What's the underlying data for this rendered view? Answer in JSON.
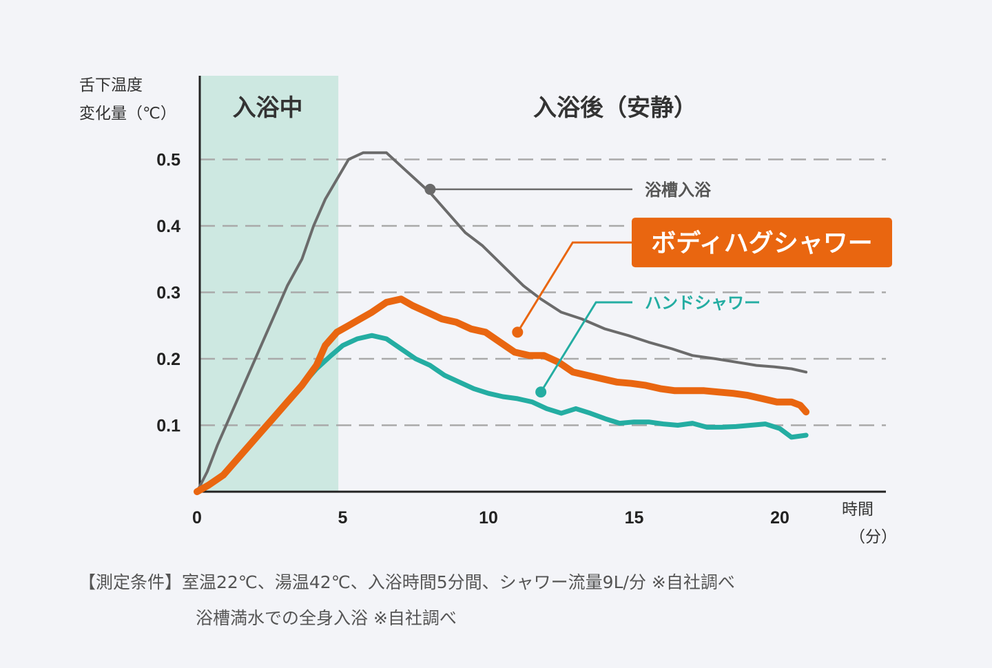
{
  "chart_data": {
    "type": "line",
    "ylabel": [
      "舌下温度",
      "変化量（℃）"
    ],
    "xlabel": [
      "時間",
      "（分）"
    ],
    "xlim": [
      0,
      23.3
    ],
    "ylim": [
      0,
      0.62
    ],
    "xticks": [
      0,
      5,
      10,
      15,
      20
    ],
    "yticks": [
      0.1,
      0.2,
      0.3,
      0.4,
      0.5
    ],
    "grid": "horizontal dashed",
    "regions": [
      {
        "label": "入浴中",
        "x0": 0,
        "x1": 4.85,
        "color": "#cde8e1"
      },
      {
        "label": "入浴後（安静）",
        "x0": 4.85,
        "x1": 23.3
      }
    ],
    "series": [
      {
        "name": "浴槽入浴",
        "color": "#6b6b6b",
        "x": [
          0,
          0.35,
          0.7,
          1.1,
          1.6,
          2.1,
          2.6,
          3.1,
          3.6,
          4.0,
          4.4,
          4.8,
          5.2,
          5.7,
          6.1,
          6.5,
          7.0,
          7.5,
          8.0,
          8.6,
          9.2,
          9.8,
          10.5,
          11.2,
          11.8,
          12.5,
          13.2,
          14.0,
          14.8,
          15.5,
          16.3,
          17.0,
          17.8,
          18.5,
          19.2,
          19.8,
          20.4,
          20.9
        ],
        "y": [
          0.0,
          0.03,
          0.07,
          0.11,
          0.16,
          0.21,
          0.26,
          0.31,
          0.35,
          0.4,
          0.44,
          0.47,
          0.5,
          0.51,
          0.51,
          0.51,
          0.49,
          0.47,
          0.45,
          0.42,
          0.39,
          0.37,
          0.34,
          0.31,
          0.29,
          0.27,
          0.26,
          0.245,
          0.235,
          0.225,
          0.215,
          0.205,
          0.2,
          0.195,
          0.19,
          0.188,
          0.185,
          0.18
        ]
      },
      {
        "name": "ボディハグシャワー",
        "color": "#e96610",
        "x": [
          0,
          0.4,
          0.9,
          1.4,
          2.0,
          2.6,
          3.1,
          3.6,
          4.1,
          4.4,
          4.8,
          5.2,
          5.6,
          6.0,
          6.5,
          7.0,
          7.4,
          7.9,
          8.4,
          8.9,
          9.4,
          9.9,
          10.4,
          10.9,
          11.4,
          11.9,
          12.4,
          12.9,
          13.4,
          13.9,
          14.4,
          14.9,
          15.4,
          15.9,
          16.4,
          16.9,
          17.4,
          17.9,
          18.4,
          18.9,
          19.4,
          19.9,
          20.4,
          20.7,
          20.9
        ],
        "y": [
          0.0,
          0.01,
          0.025,
          0.05,
          0.08,
          0.11,
          0.135,
          0.16,
          0.19,
          0.22,
          0.24,
          0.25,
          0.26,
          0.27,
          0.285,
          0.29,
          0.28,
          0.27,
          0.26,
          0.255,
          0.245,
          0.24,
          0.225,
          0.21,
          0.205,
          0.205,
          0.195,
          0.18,
          0.175,
          0.17,
          0.165,
          0.163,
          0.16,
          0.155,
          0.152,
          0.152,
          0.152,
          0.15,
          0.148,
          0.145,
          0.14,
          0.135,
          0.135,
          0.13,
          0.12
        ]
      },
      {
        "name": "ハンドシャワー",
        "color": "#24ada2",
        "x": [
          0,
          0.4,
          0.9,
          1.4,
          2.0,
          2.6,
          3.1,
          3.6,
          4.1,
          4.6,
          5.0,
          5.5,
          6.0,
          6.5,
          7.0,
          7.5,
          8.0,
          8.5,
          9.0,
          9.5,
          10.0,
          10.5,
          11.0,
          11.5,
          12.0,
          12.5,
          13.0,
          13.5,
          14.0,
          14.5,
          15.0,
          15.5,
          16.0,
          16.5,
          17.0,
          17.5,
          18.0,
          18.5,
          19.0,
          19.5,
          20.0,
          20.4,
          20.9
        ],
        "y": [
          0.0,
          0.01,
          0.025,
          0.05,
          0.08,
          0.11,
          0.135,
          0.16,
          0.185,
          0.205,
          0.22,
          0.23,
          0.235,
          0.23,
          0.215,
          0.2,
          0.19,
          0.175,
          0.165,
          0.155,
          0.148,
          0.143,
          0.14,
          0.135,
          0.125,
          0.118,
          0.125,
          0.118,
          0.11,
          0.103,
          0.105,
          0.105,
          0.102,
          0.1,
          0.103,
          0.097,
          0.097,
          0.098,
          0.1,
          0.102,
          0.095,
          0.082,
          0.085
        ]
      }
    ],
    "annotations": [
      {
        "series": "浴槽入浴",
        "point": [
          8.0,
          0.455
        ],
        "label_x": 21.0,
        "label_y": 0.455
      },
      {
        "series": "ボディハグシャワー",
        "point": [
          11.0,
          0.24
        ],
        "label_x": 21.0,
        "label_y": 0.375,
        "boxed": true
      },
      {
        "series": "ハンドシャワー",
        "point": [
          11.8,
          0.15
        ],
        "label_x": 21.0,
        "label_y": 0.285
      }
    ]
  },
  "notes": {
    "line1": "【測定条件】室温22℃、湯温42℃、入浴時間5分間、シャワー流量9L/分 ※自社調べ",
    "line2": "浴槽満水での全身入浴 ※自社調べ"
  }
}
